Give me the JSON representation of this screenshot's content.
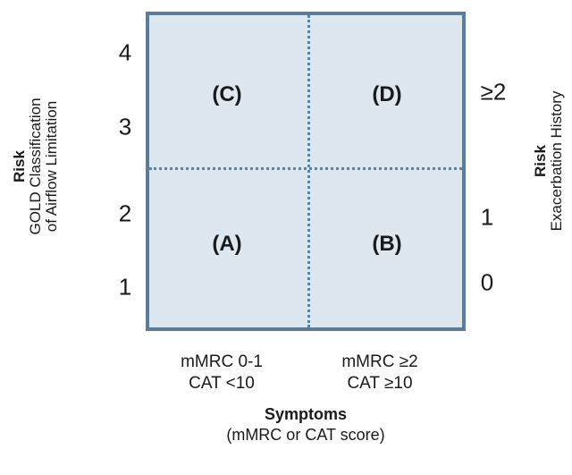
{
  "left_axis": {
    "title": "Risk",
    "subtitle_line1": "GOLD Classification",
    "subtitle_line2": "of Airflow Limitation",
    "ticks": [
      "4",
      "3",
      "2",
      "1"
    ]
  },
  "right_axis": {
    "title": "Risk",
    "subtitle": "Exacerbation History",
    "ticks": [
      "≥2",
      "1",
      "0"
    ]
  },
  "quadrants": {
    "top_left": "(C)",
    "top_right": "(D)",
    "bottom_left": "(A)",
    "bottom_right": "(B)"
  },
  "symptom_columns": [
    {
      "line1": "mMRC 0-1",
      "line2": "CAT <10"
    },
    {
      "line1": "mMRC ≥2",
      "line2": "CAT ≥10"
    }
  ],
  "x_axis": {
    "title": "Symptoms",
    "subtitle": "(mMRC or CAT score)"
  },
  "colors": {
    "box_fill": "#dde7f0",
    "box_border": "#5b7d99",
    "divider": "#5b82a6"
  }
}
